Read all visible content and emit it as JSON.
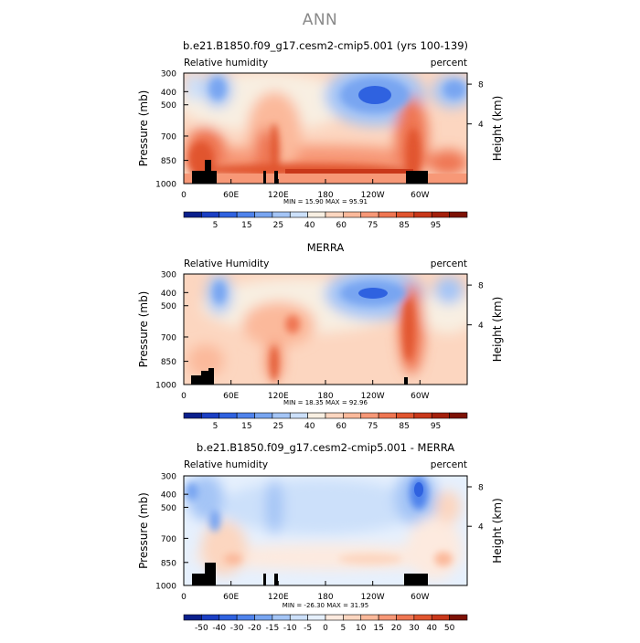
{
  "page": {
    "title": "ANN"
  },
  "colors": {
    "humidity_scale": [
      "#0a1f8c",
      "#1b3fc4",
      "#2f62e0",
      "#4f83ec",
      "#78a5f1",
      "#a4c5f6",
      "#cce0fa",
      "#f8efe2",
      "#fcd6c0",
      "#fbb99b",
      "#f79877",
      "#ef7652",
      "#e1552f",
      "#c9381a",
      "#a4200c",
      "#7d1205"
    ],
    "diff_scale": [
      "#0a1f8c",
      "#1b3fc4",
      "#2f62e0",
      "#4f83ec",
      "#78a5f1",
      "#a4c5f6",
      "#cce0fa",
      "#e6f0fd",
      "#fdeadf",
      "#fcd6c0",
      "#fbb99b",
      "#f79877",
      "#ef7652",
      "#e1552f",
      "#c9381a",
      "#7d1205"
    ],
    "land": "#000000"
  },
  "chart_data": [
    {
      "type": "heatmap",
      "title": "b.e21.B1850.f09_g17.cesm2-cmip5.001 (yrs 100-139)",
      "left_label": "Relative humidity",
      "right_label": "percent",
      "ylabel": "Pressure (mb)",
      "ylabel_right": "Height (km)",
      "y_ticks": [
        "300",
        "400",
        "500",
        "700",
        "850",
        "1000"
      ],
      "y_right_ticks": [
        "8",
        "4"
      ],
      "x_ticks": [
        "0",
        "60E",
        "120E",
        "180",
        "120W",
        "60W"
      ],
      "stats": "MIN =   15.90   MAX =   95.91",
      "colorbar_ticks": [
        "5",
        "15",
        "25",
        "40",
        "60",
        "75",
        "85",
        "95"
      ],
      "scale": "humidity_scale"
    },
    {
      "type": "heatmap",
      "title": "MERRA",
      "left_label": "Relative Humidity",
      "right_label": "percent",
      "ylabel": "Pressure (mb)",
      "ylabel_right": "Height (km)",
      "y_ticks": [
        "300",
        "400",
        "500",
        "700",
        "850",
        "1000"
      ],
      "y_right_ticks": [
        "8",
        "4"
      ],
      "x_ticks": [
        "0",
        "60E",
        "120E",
        "180",
        "120W",
        "60W"
      ],
      "stats": "MIN =   18.35   MAX =   92.96",
      "colorbar_ticks": [
        "5",
        "15",
        "25",
        "40",
        "60",
        "75",
        "85",
        "95"
      ],
      "scale": "humidity_scale"
    },
    {
      "type": "heatmap",
      "title": "b.e21.B1850.f09_g17.cesm2-cmip5.001 - MERRA",
      "left_label": "Relative humidity",
      "right_label": "percent",
      "ylabel": "Pressure (mb)",
      "ylabel_right": "Height (km)",
      "y_ticks": [
        "300",
        "400",
        "500",
        "700",
        "850",
        "1000"
      ],
      "y_right_ticks": [
        "8",
        "4"
      ],
      "x_ticks": [
        "0",
        "60E",
        "120E",
        "180",
        "120W",
        "60W"
      ],
      "stats": "MIN =  -26.30   MAX =   31.95",
      "colorbar_ticks": [
        "-50",
        "-40",
        "-30",
        "-20",
        "-15",
        "-10",
        "-5",
        "0",
        "5",
        "10",
        "15",
        "20",
        "30",
        "40",
        "50"
      ],
      "scale": "diff_scale"
    }
  ]
}
